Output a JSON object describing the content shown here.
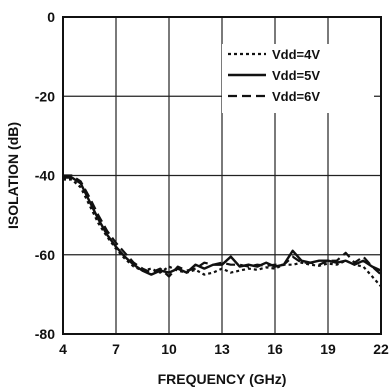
{
  "chart_data": {
    "type": "line",
    "title": "",
    "xlabel": "FREQUENCY (GHz)",
    "ylabel": "ISOLATION (dB)",
    "xlim": [
      4,
      22
    ],
    "ylim": [
      -80,
      0
    ],
    "xticks": [
      "4",
      "7",
      "10",
      "13",
      "16",
      "19",
      "22"
    ],
    "yticks": [
      "0",
      "-20",
      "-40",
      "-60",
      "-80"
    ],
    "grid": true,
    "legend_position": "top-right",
    "series": [
      {
        "name": "Vdd=4V",
        "dash": "dotted",
        "color": "#111111",
        "x": [
          4,
          4.5,
          5,
          5.5,
          6,
          6.5,
          7,
          7.5,
          8,
          8.5,
          9,
          9.5,
          10,
          10.5,
          11,
          11.5,
          12,
          12.5,
          13,
          13.5,
          14,
          14.5,
          15,
          15.5,
          16,
          16.5,
          17,
          17.5,
          18,
          18.5,
          19,
          19.5,
          20,
          20.5,
          21,
          21.5,
          22
        ],
        "y": [
          -41,
          -41,
          -43,
          -47.5,
          -52,
          -55.5,
          -58.5,
          -61,
          -63,
          -64,
          -63.5,
          -64.5,
          -63,
          -64,
          -64.5,
          -63.8,
          -65,
          -64.5,
          -63.5,
          -64.5,
          -64,
          -63.5,
          -63.8,
          -63.2,
          -63.5,
          -62.5,
          -62.5,
          -62,
          -62.5,
          -62.8,
          -62.2,
          -62.5,
          -61.5,
          -62.5,
          -63,
          -65.5,
          -68
        ]
      },
      {
        "name": "Vdd=5V",
        "dash": "solid",
        "color": "#111111",
        "x": [
          4,
          4.5,
          5,
          5.5,
          6,
          6.5,
          7,
          7.5,
          8,
          8.5,
          9,
          9.5,
          10,
          10.5,
          11,
          11.5,
          12,
          12.5,
          13,
          13.5,
          14,
          14.5,
          15,
          15.5,
          16,
          16.5,
          17,
          17.5,
          18,
          18.5,
          19,
          19.5,
          20,
          20.5,
          21,
          21.5,
          22
        ],
        "y": [
          -40.5,
          -40.5,
          -42,
          -46.5,
          -51,
          -55,
          -58,
          -60.5,
          -62.5,
          -64,
          -65,
          -64,
          -64.5,
          -63.5,
          -64.5,
          -62.5,
          -63.5,
          -62.5,
          -62.5,
          -60.5,
          -63,
          -62.5,
          -63,
          -62,
          -63,
          -62.5,
          -59,
          -61.5,
          -62,
          -61.5,
          -61.5,
          -62,
          -61.5,
          -62.5,
          -61.5,
          -63,
          -64
        ]
      },
      {
        "name": "Vdd=6V",
        "dash": "dashed",
        "color": "#111111",
        "x": [
          4,
          4.5,
          5,
          5.5,
          6,
          6.5,
          7,
          7.5,
          8,
          8.5,
          9,
          9.5,
          10,
          10.5,
          11,
          11.5,
          12,
          12.5,
          13,
          13.5,
          14,
          14.5,
          15,
          15.5,
          16,
          16.5,
          17,
          17.5,
          18,
          18.5,
          19,
          19.5,
          20,
          20.5,
          21,
          21.5,
          22
        ],
        "y": [
          -40,
          -40,
          -41.5,
          -45.5,
          -50,
          -54,
          -57,
          -59.5,
          -62,
          -63.5,
          -64.5,
          -63.5,
          -65.5,
          -63,
          -64,
          -63.5,
          -62,
          -62.5,
          -62,
          -62.5,
          -62.5,
          -63,
          -62.5,
          -62.8,
          -62.5,
          -62.5,
          -60.5,
          -62,
          -62,
          -62.5,
          -61.5,
          -61.5,
          -59.5,
          -62,
          -60.5,
          -63,
          -65
        ]
      }
    ]
  }
}
